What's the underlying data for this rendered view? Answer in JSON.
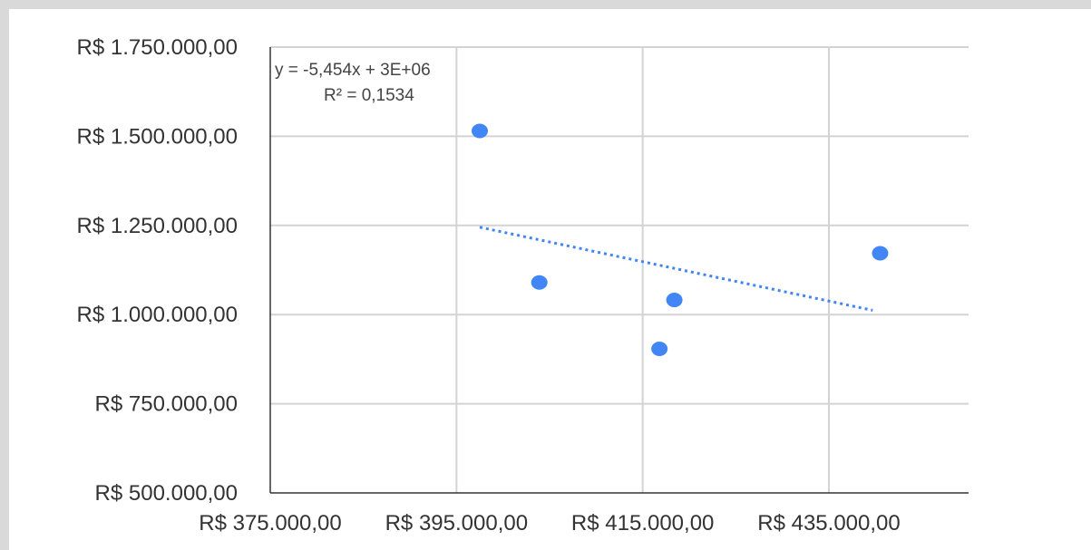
{
  "chart_data": {
    "type": "scatter",
    "title": "",
    "xlabel": "",
    "ylabel": "",
    "x_ticks": [
      375000,
      395000,
      415000,
      435000
    ],
    "x_tick_labels": [
      "R$ 375.000,00",
      "R$ 395.000,00",
      "R$ 415.000,00",
      "R$ 435.000,00"
    ],
    "y_ticks": [
      500000,
      750000,
      1000000,
      1250000,
      1500000,
      1750000
    ],
    "y_tick_labels": [
      "R$ 500.000,00",
      "R$ 750.000,00",
      "R$ 1.000.000,00",
      "R$ 1.250.000,00",
      "R$ 1.500.000,00",
      "R$ 1.750.000,00"
    ],
    "xlim": [
      375000,
      450000
    ],
    "ylim": [
      500000,
      1750000
    ],
    "grid": true,
    "series": [
      {
        "color": "#4285f4",
        "points": [
          {
            "x": 397500,
            "y": 1515000
          },
          {
            "x": 403900,
            "y": 1090000
          },
          {
            "x": 416800,
            "y": 904000
          },
          {
            "x": 418400,
            "y": 1041000
          },
          {
            "x": 440500,
            "y": 1172000
          }
        ]
      }
    ],
    "trendline": {
      "type": "linear",
      "style": "dotted",
      "color": "#4285f4",
      "x_range": [
        397500,
        439700
      ],
      "y_range": [
        1245000,
        1012000
      ],
      "equation": "y = -5,454x  + 3E+06",
      "r_squared": "R² = 0,1534"
    }
  }
}
